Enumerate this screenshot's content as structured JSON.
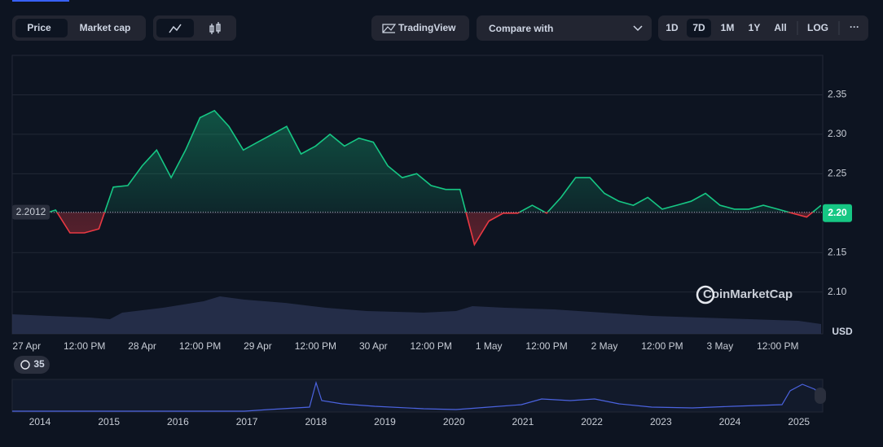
{
  "toolbar": {
    "view_tabs": [
      "Price",
      "Market cap"
    ],
    "trading_view": "TradingView",
    "compare": "Compare with",
    "ranges": [
      "1D",
      "7D",
      "1M",
      "1Y",
      "All",
      "LOG"
    ],
    "more": "···"
  },
  "chart_data": {
    "type": "line",
    "categories": [
      null,
      "27 Apr",
      null,
      null,
      null,
      "12:00 PM",
      null,
      null,
      null,
      "28 Apr",
      null,
      null,
      null,
      "12:00 PM",
      null,
      null,
      null,
      "29 Apr",
      null,
      null,
      null,
      "12:00 PM",
      null,
      null,
      null,
      "30 Apr",
      null,
      null,
      null,
      "12:00 PM",
      null,
      null,
      null,
      "1 May",
      null,
      null,
      null,
      "12:00 PM",
      null,
      null,
      null,
      "2 May",
      null,
      null,
      null,
      "12:00 PM",
      null,
      null,
      null,
      "3 May",
      null,
      null,
      null,
      "12:00 PM",
      null,
      null,
      null
    ],
    "values": [
      2.2,
      2.2,
      2.198,
      2.204,
      2.175,
      2.175,
      2.18,
      2.233,
      2.235,
      2.26,
      2.28,
      2.245,
      2.28,
      2.321,
      2.33,
      2.31,
      2.28,
      2.29,
      2.3,
      2.31,
      2.275,
      2.285,
      2.3,
      2.285,
      2.295,
      2.29,
      2.26,
      2.245,
      2.25,
      2.235,
      2.23,
      2.23,
      2.16,
      2.19,
      2.2,
      2.2,
      2.21,
      2.2,
      2.22,
      2.245,
      2.245,
      2.225,
      2.215,
      2.21,
      2.22,
      2.205,
      2.21,
      2.215,
      2.225,
      2.21,
      2.205,
      2.205,
      2.21,
      2.205,
      2.2,
      2.195,
      2.21
    ],
    "up_color": "#16c784",
    "down_color": "#ea3943",
    "reference": 2.2012,
    "current": {
      "value": 2.2,
      "label": "2.20"
    },
    "ylim": [
      2.047,
      2.4
    ],
    "yticks": [
      {
        "value": 2.1,
        "label": "2.10"
      },
      2.15,
      {
        "value": 2.2,
        "label": "2.20"
      },
      2.25,
      {
        "value": 2.3,
        "label": "2.30"
      },
      2.35
    ],
    "grid": true,
    "unit": "USD",
    "watermark": "CoinMarketCap"
  },
  "history_badge": "35",
  "navigator": {
    "years": [
      "2014",
      "2015",
      "2016",
      "2017",
      "2018",
      "2019",
      "2020",
      "2021",
      "2022",
      "2023",
      "2024",
      "2025"
    ]
  }
}
